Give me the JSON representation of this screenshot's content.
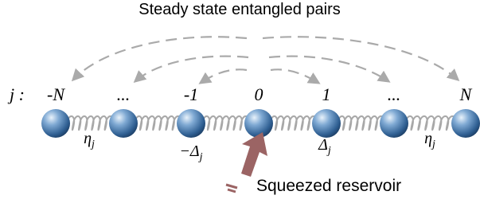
{
  "title": "Steady state entangled pairs",
  "index_prefix": "j :",
  "indices": [
    "-N",
    "...",
    "-1",
    "0",
    "1",
    "...",
    "N"
  ],
  "couplings": [
    {
      "symbol": "η",
      "subscript": "j"
    },
    {
      "symbol": "−Δ",
      "subscript": "j"
    },
    {
      "symbol": "Δ",
      "subscript": "j"
    },
    {
      "symbol": "η",
      "subscript": "j"
    }
  ],
  "reservoir_label": "Squeezed reservoir"
}
